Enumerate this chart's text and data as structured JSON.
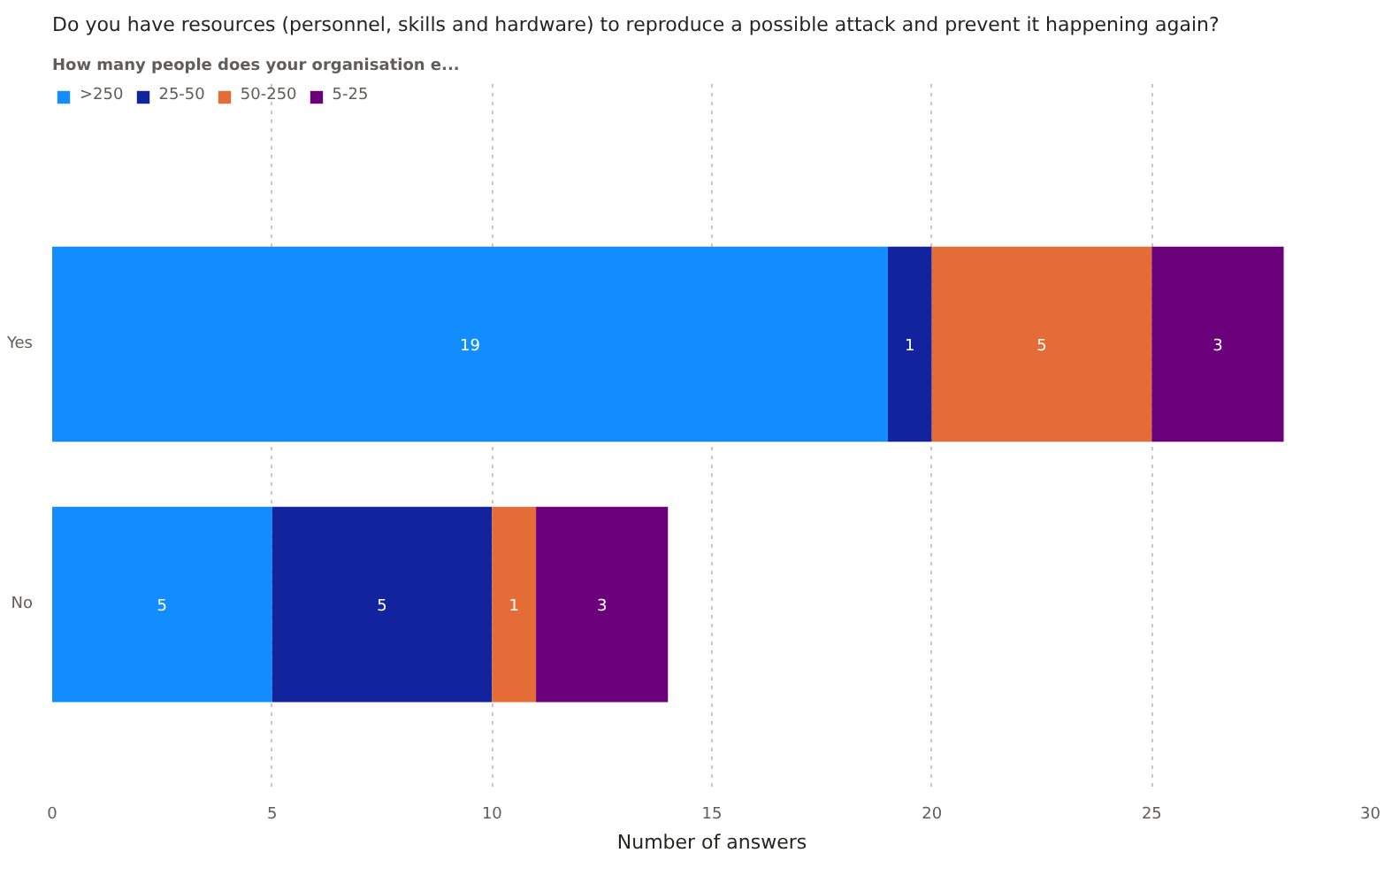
{
  "chart_data": {
    "type": "bar",
    "title": "Do you have resources (personnel, skills and hardware) to reproduce a possible attack and prevent it happening again?",
    "legend_title": "How many people does your organisation e...",
    "xlabel": "Number of answers",
    "orientation": "horizontal",
    "stacked": true,
    "categories": [
      "Yes",
      "No"
    ],
    "series": [
      {
        "name": ">250",
        "color": "#118dff",
        "values": [
          19,
          5
        ]
      },
      {
        "name": "25-50",
        "color": "#12239e",
        "values": [
          1,
          5
        ]
      },
      {
        "name": "50-250",
        "color": "#e66c37",
        "values": [
          5,
          1
        ]
      },
      {
        "name": "5-25",
        "color": "#6b007b",
        "values": [
          3,
          3
        ]
      }
    ],
    "xlim": [
      0,
      30
    ],
    "xticks": [
      0,
      5,
      10,
      15,
      20,
      25,
      30
    ],
    "grid": "x",
    "legend": "top left",
    "data_labels": true
  }
}
